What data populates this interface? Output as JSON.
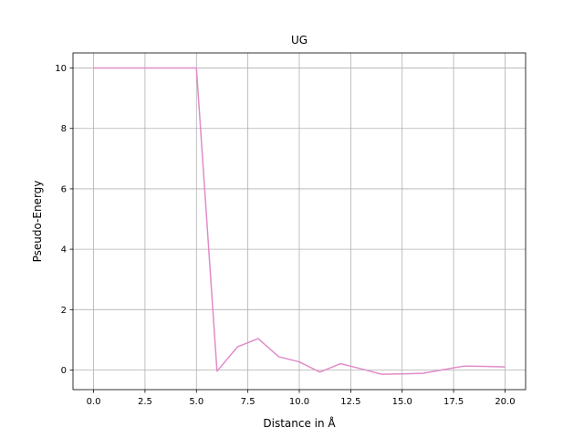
{
  "chart_data": {
    "type": "line",
    "title": "UG",
    "xlabel": "Distance in Å",
    "ylabel": "Pseudo-Energy",
    "xlim": [
      -1,
      21
    ],
    "ylim": [
      -0.65,
      10.5
    ],
    "xticks": [
      0,
      2.5,
      5,
      7.5,
      10,
      12.5,
      15,
      17.5,
      20
    ],
    "xtick_labels": [
      "0.0",
      "2.5",
      "5.0",
      "7.5",
      "10.0",
      "12.5",
      "15.0",
      "17.5",
      "20.0"
    ],
    "yticks": [
      0,
      2,
      4,
      6,
      8,
      10
    ],
    "ytick_labels": [
      "0",
      "2",
      "4",
      "6",
      "8",
      "10"
    ],
    "grid": true,
    "series": [
      {
        "color": "#e08cc8",
        "x": [
          0,
          1,
          2,
          3,
          4,
          5,
          6,
          7,
          8,
          9,
          10,
          11,
          12,
          13,
          14,
          15,
          16,
          17,
          18,
          19,
          20
        ],
        "values": [
          10,
          10,
          10,
          10,
          10,
          10,
          -0.04,
          0.77,
          1.04,
          0.44,
          0.27,
          -0.07,
          0.21,
          0.04,
          -0.14,
          -0.13,
          -0.11,
          0.01,
          0.13,
          0.12,
          0.1
        ]
      }
    ]
  }
}
